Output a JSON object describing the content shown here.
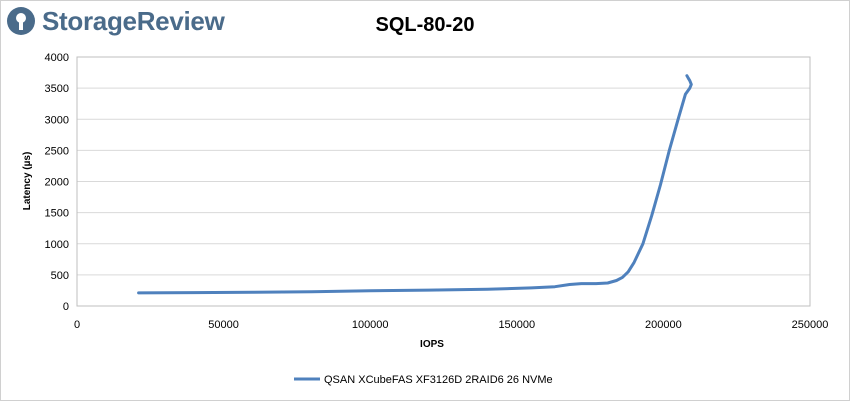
{
  "brand": {
    "name": "StorageReview",
    "icon": "storagereview-logo-icon",
    "color": "#4a6b8a"
  },
  "chart_data": {
    "type": "line",
    "title": "SQL-80-20",
    "xlabel": "IOPS",
    "ylabel": "Latency (µs)",
    "xlim": [
      0,
      250000
    ],
    "ylim": [
      0,
      4000
    ],
    "xticks": [
      0,
      50000,
      100000,
      150000,
      200000,
      250000
    ],
    "yticks": [
      0,
      500,
      1000,
      1500,
      2000,
      2500,
      3000,
      3500,
      4000
    ],
    "grid": true,
    "legend_position": "bottom",
    "series": [
      {
        "name": "QSAN XCubeFAS XF3126D 2RAID6 26 NVMe",
        "color": "#4f81bd",
        "x": [
          21000,
          40000,
          60000,
          80000,
          100000,
          120000,
          140000,
          155000,
          163000,
          168000,
          172000,
          177000,
          181000,
          184000,
          186000,
          188000,
          190000,
          193000,
          196000,
          199000,
          202000,
          205000,
          207500,
          209000,
          209500,
          209000,
          208500,
          208000
        ],
        "y": [
          210,
          215,
          220,
          230,
          245,
          255,
          270,
          290,
          310,
          345,
          360,
          360,
          370,
          410,
          460,
          550,
          700,
          1000,
          1450,
          1950,
          2500,
          3000,
          3400,
          3500,
          3560,
          3620,
          3660,
          3700
        ]
      }
    ]
  }
}
